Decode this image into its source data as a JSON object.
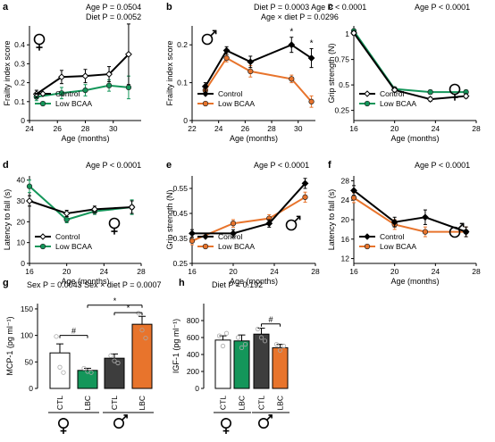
{
  "colors": {
    "control": "#000000",
    "green": "#14965a",
    "orange": "#e8742c",
    "grey_bar": "#3d3d3d",
    "axis": "#000000"
  },
  "sex_symbols": {
    "female": "♀",
    "male": "♂"
  },
  "chart_data": [
    {
      "id": "a",
      "panel_label": "a",
      "type": "line",
      "stats": [
        "Age P = 0.0504",
        "Diet P = 0.0052"
      ],
      "xlabel": "Age (months)",
      "ylabel": "Frailty index score",
      "xlim": [
        24,
        32
      ],
      "ylim": [
        0,
        0.5
      ],
      "xticks": [
        24,
        26,
        28,
        30
      ],
      "yticks": [
        0,
        0.1,
        0.2,
        0.3,
        0.4
      ],
      "sex": "female",
      "legend_position": "bottom-left",
      "series": [
        {
          "name": "Control",
          "style": "control",
          "x": [
            24.5,
            26.3,
            28,
            29.7,
            31.1
          ],
          "y": [
            0.14,
            0.23,
            0.235,
            0.245,
            0.35
          ],
          "err": [
            0.02,
            0.035,
            0.035,
            0.04,
            0.16
          ]
        },
        {
          "name": "Low BCAA",
          "style": "green",
          "x": [
            24.5,
            26.3,
            28,
            29.7,
            31.1
          ],
          "y": [
            0.125,
            0.145,
            0.16,
            0.185,
            0.175
          ],
          "err": [
            0.02,
            0.03,
            0.03,
            0.03,
            0.06
          ]
        }
      ]
    },
    {
      "id": "b",
      "panel_label": "b",
      "type": "line",
      "stats": [
        "Diet P = 0.0003  Age P < 0.0001",
        "Age × diet P = 0.0296"
      ],
      "xlabel": "Age (months)",
      "ylabel": "Frailty index score",
      "xlim": [
        22,
        31.3
      ],
      "ylim": [
        0,
        0.25
      ],
      "xticks": [
        22,
        24,
        26,
        28,
        30
      ],
      "yticks": [
        0,
        0.1,
        0.2
      ],
      "sex": "male",
      "legend_position": "bottom-left",
      "sig_x": [
        29.5,
        31
      ],
      "sig_text": "*",
      "series": [
        {
          "name": "Control",
          "style": "control",
          "x": [
            23,
            24.6,
            26.4,
            29.5,
            31
          ],
          "y": [
            0.09,
            0.185,
            0.155,
            0.2,
            0.165
          ],
          "err": [
            0.01,
            0.01,
            0.015,
            0.02,
            0.025
          ]
        },
        {
          "name": "Low BCAA",
          "style": "orange",
          "x": [
            23,
            24.6,
            26.4,
            29.5,
            31
          ],
          "y": [
            0.08,
            0.165,
            0.13,
            0.11,
            0.05
          ],
          "err": [
            0.01,
            0.01,
            0.015,
            0.01,
            0.015
          ]
        }
      ]
    },
    {
      "id": "c",
      "panel_label": "c",
      "type": "line",
      "stats": [
        "Age P < 0.0001"
      ],
      "xlabel": "Age (months)",
      "ylabel": "Grip strength (N)",
      "xlim": [
        16,
        28
      ],
      "ylim": [
        0.15,
        1.08
      ],
      "xticks": [
        16,
        20,
        24,
        28
      ],
      "yticks": [
        0.25,
        0.5,
        0.75,
        1
      ],
      "sex": "female",
      "legend_position": "bottom-left",
      "series": [
        {
          "name": "Control",
          "style": "control",
          "x": [
            16,
            20,
            23.5,
            27
          ],
          "y": [
            1.01,
            0.45,
            0.36,
            0.39
          ],
          "err": [
            0.02,
            0.02,
            0.02,
            0.02
          ]
        },
        {
          "name": "Low BCAA",
          "style": "green",
          "x": [
            16,
            20,
            23.5,
            27
          ],
          "y": [
            1.03,
            0.46,
            0.43,
            0.43
          ],
          "err": [
            0.02,
            0.02,
            0.02,
            0.02
          ]
        }
      ]
    },
    {
      "id": "d",
      "panel_label": "d",
      "type": "line",
      "stats": [
        "Age P < 0.0001"
      ],
      "xlabel": "Age (months)",
      "ylabel": "Latency to fall (s)",
      "xlim": [
        16,
        28
      ],
      "ylim": [
        0,
        42
      ],
      "xticks": [
        16,
        20,
        24,
        28
      ],
      "yticks": [
        0,
        10,
        20,
        30,
        40
      ],
      "sex": "female",
      "legend_position": "bottom-left",
      "series": [
        {
          "name": "Control",
          "style": "control",
          "x": [
            16,
            20,
            23,
            27
          ],
          "y": [
            30,
            24,
            26,
            27
          ],
          "err": [
            2.5,
            1.5,
            1.5,
            3
          ]
        },
        {
          "name": "Low BCAA",
          "style": "green",
          "x": [
            16,
            20,
            23,
            27
          ],
          "y": [
            37,
            21,
            25,
            27
          ],
          "err": [
            3,
            1.5,
            1.5,
            3.5
          ]
        }
      ]
    },
    {
      "id": "e",
      "panel_label": "e",
      "type": "line",
      "stats": [
        "Age P < 0.0001"
      ],
      "xlabel": "Age (months)",
      "ylabel": "Grip strength (N)",
      "xlim": [
        16,
        28
      ],
      "ylim": [
        0.25,
        0.6
      ],
      "xticks": [
        16,
        20,
        24,
        28
      ],
      "yticks": [
        0.25,
        0.35,
        0.45,
        0.55
      ],
      "sex": "male",
      "legend_position": "bottom-left",
      "series": [
        {
          "name": "Control",
          "style": "control",
          "x": [
            16,
            20,
            23.5,
            27
          ],
          "y": [
            0.37,
            0.37,
            0.41,
            0.57
          ],
          "err": [
            0.015,
            0.015,
            0.015,
            0.02
          ]
        },
        {
          "name": "Low BCAA",
          "style": "orange",
          "x": [
            16,
            20,
            23.5,
            27
          ],
          "y": [
            0.34,
            0.41,
            0.43,
            0.515
          ],
          "err": [
            0.015,
            0.015,
            0.015,
            0.02
          ]
        }
      ]
    },
    {
      "id": "f",
      "panel_label": "f",
      "type": "line",
      "stats": [
        "Age P < 0.0001"
      ],
      "xlabel": "Age (months)",
      "ylabel": "Latency to fall (s)",
      "xlim": [
        16,
        28
      ],
      "ylim": [
        11,
        29
      ],
      "xticks": [
        16,
        20,
        24,
        28
      ],
      "yticks": [
        12,
        16,
        20,
        24,
        28
      ],
      "sex": "male",
      "legend_position": "bottom-left",
      "series": [
        {
          "name": "Control",
          "style": "control",
          "x": [
            16,
            20,
            23,
            27
          ],
          "y": [
            26,
            19.5,
            20.5,
            17.5
          ],
          "err": [
            1,
            1,
            1.5,
            1
          ]
        },
        {
          "name": "Low BCAA",
          "style": "orange",
          "x": [
            16,
            20,
            23,
            27
          ],
          "y": [
            24.5,
            19,
            17.5,
            17.5
          ],
          "err": [
            1,
            1,
            1,
            1
          ]
        }
      ]
    },
    {
      "id": "g",
      "panel_label": "g",
      "type": "bar",
      "stats": [
        "Sex P = 0.0043 Sex × diet P = 0.0007"
      ],
      "ylabel": "MCP-1 (pg ml⁻¹)",
      "ylim": [
        0,
        160
      ],
      "yticks": [
        0,
        50,
        100,
        150
      ],
      "categories": [
        "CTL",
        "LBC",
        "CTL",
        "LBC"
      ],
      "groups": [
        "female",
        "male"
      ],
      "values": [
        67,
        34,
        57,
        121
      ],
      "err": [
        17,
        4,
        8,
        15
      ],
      "fills": [
        "white",
        "green",
        "grey_bar",
        "orange"
      ],
      "points": [
        [
          98,
          40,
          30
        ],
        [
          38,
          32,
          30
        ],
        [
          62,
          52,
          48
        ],
        [
          142,
          110,
          95
        ]
      ],
      "annotations": [
        {
          "text": "#",
          "from": 0,
          "to": 1,
          "y": 100
        },
        {
          "text": "*",
          "from": 2,
          "to": 3,
          "y": 143
        },
        {
          "text": "*",
          "from": 1,
          "to": 3,
          "y": 157
        }
      ]
    },
    {
      "id": "h",
      "panel_label": "h",
      "type": "bar",
      "stats": [
        "Diet P = 0.192"
      ],
      "ylabel": "IGF-1 (pg ml⁻¹)",
      "ylim": [
        0,
        1000
      ],
      "yticks": [
        0,
        200,
        400,
        600,
        800
      ],
      "categories": [
        "CTL",
        "LBC",
        "CTL",
        "LBC"
      ],
      "groups": [
        "female",
        "male"
      ],
      "values": [
        570,
        560,
        640,
        480
      ],
      "err": [
        50,
        70,
        70,
        40
      ],
      "fills": [
        "white",
        "green",
        "grey_bar",
        "orange"
      ],
      "points": [
        [
          620,
          500,
          650
        ],
        [
          600,
          480,
          520
        ],
        [
          700,
          600,
          560
        ],
        [
          520,
          450,
          500
        ]
      ],
      "annotations": [
        {
          "text": "#",
          "from": 2,
          "to": 3,
          "y": 760
        }
      ]
    }
  ]
}
